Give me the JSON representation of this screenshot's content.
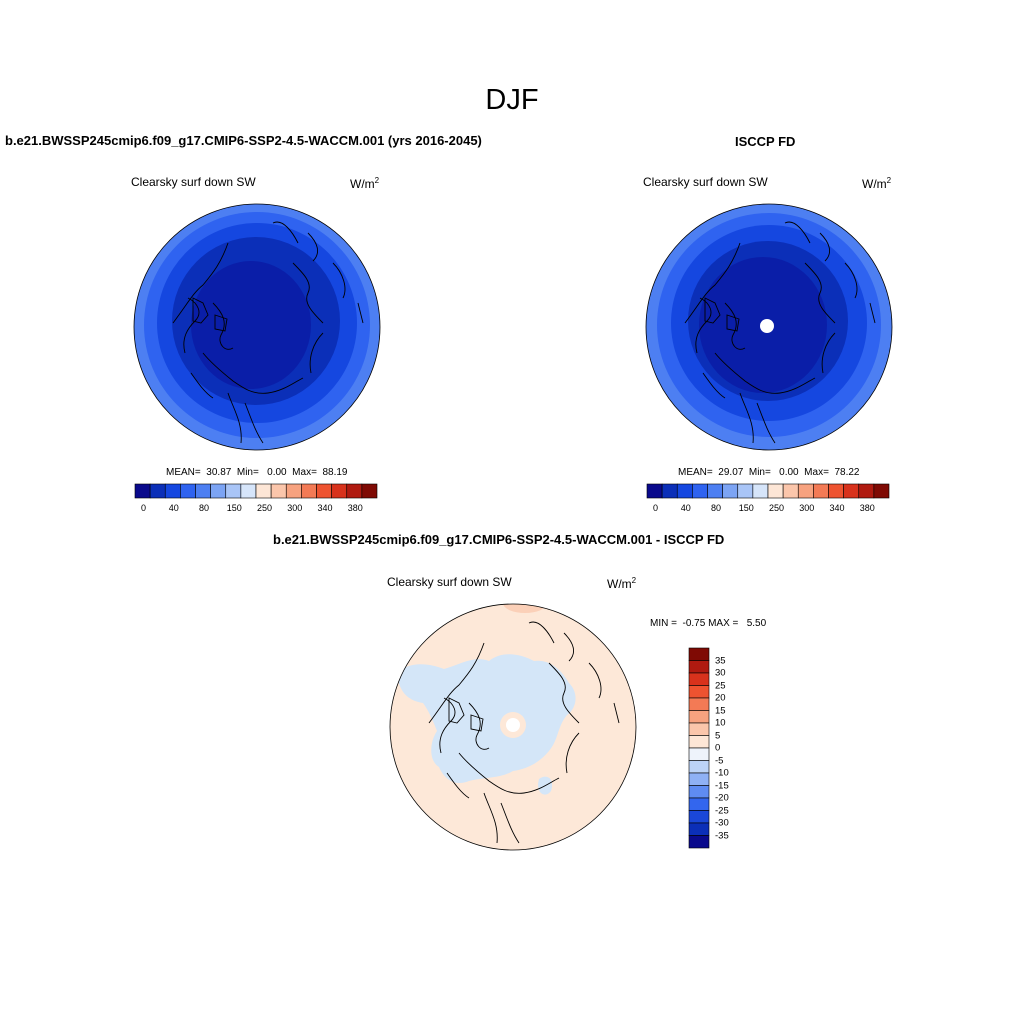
{
  "title": "DJF",
  "panels": {
    "left": {
      "title": "b.e21.BWSSP245cmip6.f09_g17.CMIP6-SSP2-4.5-WACCM.001 (yrs 2016-2045)",
      "variable": "Clearsky surf down SW",
      "units": "W/m",
      "units_exp": "2",
      "stats": "MEAN=  30.87  Min=   0.00  Max=  88.19"
    },
    "right": {
      "title": "ISCCP FD",
      "variable": "Clearsky surf down SW",
      "units": "W/m",
      "units_exp": "2",
      "stats": "MEAN=  29.07  Min=   0.00  Max=  78.22"
    },
    "diff": {
      "title": "b.e21.BWSSP245cmip6.f09_g17.CMIP6-SSP2-4.5-WACCM.001 - ISCCP FD",
      "variable": "Clearsky surf down SW",
      "units": "W/m",
      "units_exp": "2",
      "stats": "MIN =  -0.75 MAX =   5.50"
    }
  },
  "colorbar_main": {
    "tick_labels": [
      "0",
      "40",
      "80",
      "150",
      "250",
      "300",
      "340",
      "380"
    ],
    "colors": [
      "#0a0a8c",
      "#0b2fb8",
      "#1547e0",
      "#2f63f0",
      "#4d7ff2",
      "#7ca4f4",
      "#a9c5f7",
      "#d6e5fa",
      "#fde6d6",
      "#fbc6ab",
      "#f7a27f",
      "#f37a55",
      "#ee5330",
      "#d8321c",
      "#b01a10",
      "#7f0a04"
    ]
  },
  "colorbar_diff": {
    "tick_labels": [
      "35",
      "30",
      "25",
      "20",
      "15",
      "10",
      "5",
      "0",
      "-5",
      "-10",
      "-15",
      "-20",
      "-25",
      "-30",
      "-35"
    ],
    "colors": [
      "#7f0a04",
      "#b01a10",
      "#d8321c",
      "#ee5330",
      "#f37a55",
      "#f7a27f",
      "#fbc6ab",
      "#fde6d6",
      "#eef3fb",
      "#bcd3f7",
      "#8fb1f5",
      "#5f8cf2",
      "#3366ee",
      "#1a47d8",
      "#0b2fb8",
      "#0a0a8c"
    ]
  },
  "map_colors": {
    "ring_outer": "#4d7ff2",
    "ring_2": "#2f63f0",
    "ring_3": "#1547e0",
    "ring_4": "#0b2fb8",
    "core": "#0a1ea8",
    "diff_positive": "#fde8d8",
    "diff_negative": "#d4e6f8",
    "diff_stronger_positive": "#fbd0b8"
  }
}
